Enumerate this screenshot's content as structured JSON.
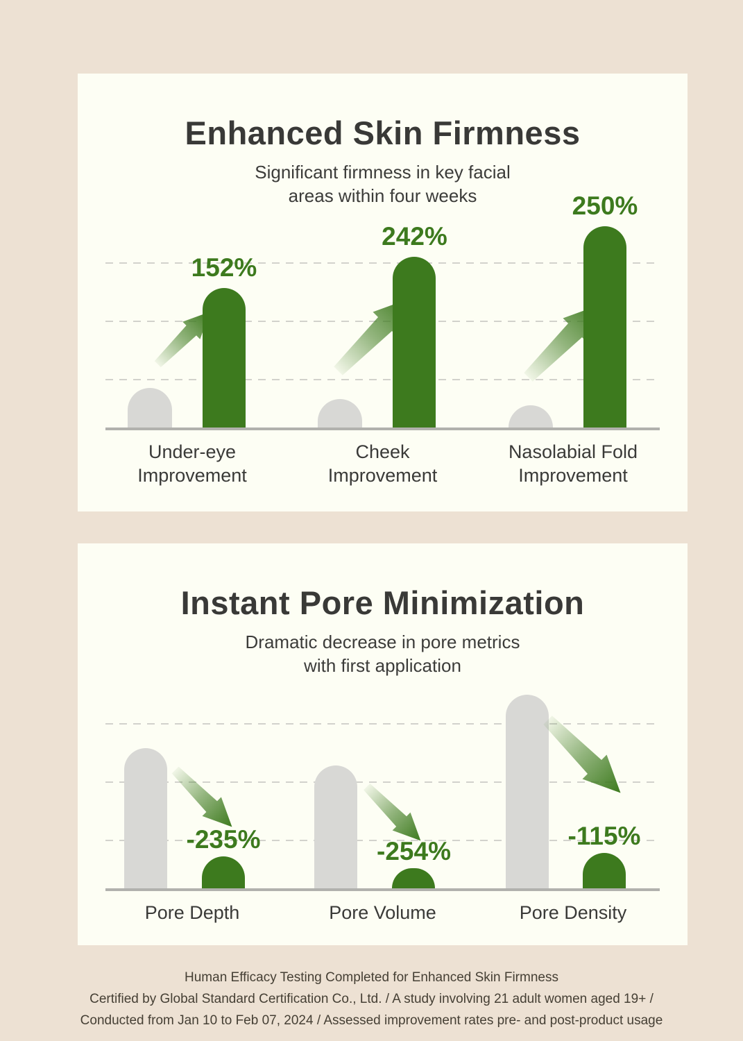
{
  "page": {
    "background_color": "#ede1d3",
    "card_color": "#fdfef4",
    "accent_green": "#3d7a1e",
    "bar_gray": "#d8d8d5"
  },
  "chart_data": [
    {
      "type": "bar",
      "panel": "skin-firmness",
      "title": "Enhanced Skin Firmness",
      "subtitle_lines": [
        "Significant firmness in key facial",
        "areas within four weeks"
      ],
      "arrow": "up",
      "gridlines": {
        "count": 3,
        "style": "dashed"
      },
      "legend_position": "none",
      "bar_colors": {
        "baseline": "#d8d8d5",
        "result": "#3d7a1e"
      },
      "categories": [
        "Under-eye Improvement",
        "Cheek Improvement",
        "Nasolabial Fold Improvement"
      ],
      "values": [
        152,
        242,
        250
      ],
      "groups": [
        {
          "category_lines": [
            "Under-eye",
            "Improvement"
          ],
          "value": 152,
          "value_label": "152%",
          "baseline_frac": 0.19,
          "result_frac": 0.67
        },
        {
          "category_lines": [
            "Cheek",
            "Improvement"
          ],
          "value": 242,
          "value_label": "242%",
          "baseline_frac": 0.135,
          "result_frac": 0.82
        },
        {
          "category_lines": [
            "Nasolabial Fold",
            "Improvement"
          ],
          "value": 250,
          "value_label": "250%",
          "baseline_frac": 0.105,
          "result_frac": 0.965
        }
      ]
    },
    {
      "type": "bar",
      "panel": "pore-minimization",
      "title": "Instant Pore Minimization",
      "subtitle_lines": [
        "Dramatic decrease in pore metrics",
        "with first application"
      ],
      "arrow": "down",
      "gridlines": {
        "count": 3,
        "style": "dashed"
      },
      "legend_position": "none",
      "bar_colors": {
        "baseline": "#d8d8d5",
        "result": "#3d7a1e"
      },
      "categories": [
        "Pore Depth",
        "Pore Volume",
        "Pore Density"
      ],
      "values": [
        -235,
        -254,
        -115
      ],
      "groups": [
        {
          "category_lines": [
            "Pore Depth"
          ],
          "value": -235,
          "value_label": "-235%",
          "baseline_frac": 0.71,
          "result_frac": 0.16
        },
        {
          "category_lines": [
            "Pore Volume"
          ],
          "value": -254,
          "value_label": "-254%",
          "baseline_frac": 0.62,
          "result_frac": 0.1
        },
        {
          "category_lines": [
            "Pore Density"
          ],
          "value": -115,
          "value_label": "-115%",
          "baseline_frac": 0.98,
          "result_frac": 0.18
        }
      ]
    }
  ],
  "footer": {
    "lines": [
      "Human Efficacy Testing Completed for Enhanced Skin Firmness",
      "Certified by Global Standard Certification Co., Ltd. / A study involving 21 adult women aged 19+ /",
      "Conducted from Jan 10 to Feb 07, 2024 / Assessed improvement rates pre- and post-product usage"
    ]
  }
}
